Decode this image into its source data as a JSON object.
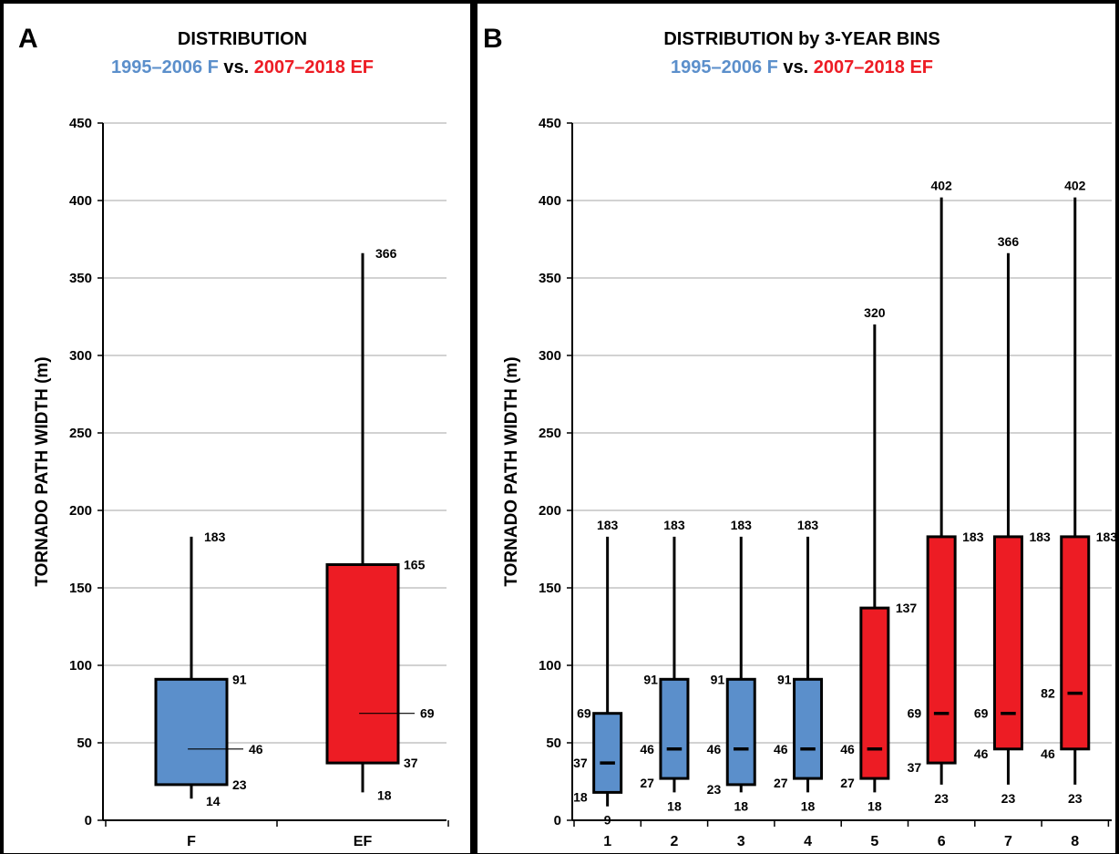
{
  "colors": {
    "F": "#5b8fcb",
    "EF": "#ed1c24"
  },
  "panels": {
    "A": {
      "letter": "A",
      "title": "DISTRIBUTION",
      "subtitle_f": "1995–2006 F",
      "subtitle_vs": " vs. ",
      "subtitle_ef": "2007–2018 EF"
    },
    "B": {
      "letter": "B",
      "title": "DISTRIBUTION  by 3-YEAR BINS",
      "subtitle_f": "1995–2006 F",
      "subtitle_vs": " vs. ",
      "subtitle_ef": "2007–2018 EF"
    }
  },
  "chart_data": [
    {
      "type": "boxplot",
      "panel": "A",
      "ylabel": "TORNADO PATH WIDTH (m)",
      "ylim": [
        0,
        450
      ],
      "yticks": [
        0,
        50,
        100,
        150,
        200,
        250,
        300,
        350,
        400,
        450
      ],
      "grid": true,
      "categories": [
        "F",
        "EF"
      ],
      "boxes": [
        {
          "category": "F",
          "group": "F",
          "min": 14,
          "q1": 23,
          "median": 46,
          "q3": 91,
          "max": 183,
          "labels": {
            "min": "14",
            "q1": "23",
            "median": "46",
            "q3": "91",
            "max": "183"
          }
        },
        {
          "category": "EF",
          "group": "EF",
          "min": 18,
          "q1": 37,
          "median": 69,
          "q3": 165,
          "max": 366,
          "labels": {
            "min": "18",
            "q1": "37",
            "median": "69",
            "q3": "165",
            "max": "366"
          }
        }
      ]
    },
    {
      "type": "boxplot",
      "panel": "B",
      "ylabel": "TORNADO PATH WIDTH (m)",
      "ylim": [
        0,
        450
      ],
      "yticks": [
        0,
        50,
        100,
        150,
        200,
        250,
        300,
        350,
        400,
        450
      ],
      "grid": true,
      "categories": [
        "1",
        "2",
        "3",
        "4",
        "5",
        "6",
        "7",
        "8"
      ],
      "boxes": [
        {
          "category": "1",
          "group": "F",
          "min": 9,
          "q1": 18,
          "median": 37,
          "q3": 69,
          "max": 183,
          "labels": {
            "min": "9",
            "q1": "18",
            "median": "37",
            "q3": "69",
            "max": "183"
          }
        },
        {
          "category": "2",
          "group": "F",
          "min": 18,
          "q1": 27,
          "median": 46,
          "q3": 91,
          "max": 183,
          "labels": {
            "min": "18",
            "q1": "27",
            "median": "46",
            "q3": "91",
            "max": "183"
          }
        },
        {
          "category": "3",
          "group": "F",
          "min": 18,
          "q1": 23,
          "median": 46,
          "q3": 91,
          "max": 183,
          "labels": {
            "min": "18",
            "q1": "23",
            "median": "46",
            "q3": "91",
            "max": "183"
          }
        },
        {
          "category": "4",
          "group": "F",
          "min": 18,
          "q1": 27,
          "median": 46,
          "q3": 91,
          "max": 183,
          "labels": {
            "min": "18",
            "q1": "27",
            "median": "46",
            "q3": "91",
            "max": "183"
          }
        },
        {
          "category": "5",
          "group": "EF",
          "min": 18,
          "q1": 27,
          "median": 46,
          "q3": 137,
          "max": 320,
          "labels": {
            "min": "18",
            "q1": "27",
            "median": "46",
            "q3": "137",
            "max": "320"
          }
        },
        {
          "category": "6",
          "group": "EF",
          "min": 23,
          "q1": 37,
          "median": 69,
          "q3": 183,
          "max": 402,
          "labels": {
            "min": "23",
            "q1": "37",
            "median": "69",
            "q3": "183",
            "max": "402"
          }
        },
        {
          "category": "7",
          "group": "EF",
          "min": 23,
          "q1": 46,
          "median": 69,
          "q3": 183,
          "max": 366,
          "labels": {
            "min": "23",
            "q1": "46",
            "median": "69",
            "q3": "183",
            "max": "366"
          }
        },
        {
          "category": "8",
          "group": "EF",
          "min": 23,
          "q1": 46,
          "median": 82,
          "q3": 183,
          "max": 402,
          "labels": {
            "min": "23",
            "q1": "46",
            "median": "82",
            "q3": "183",
            "max": "402"
          }
        }
      ]
    }
  ]
}
